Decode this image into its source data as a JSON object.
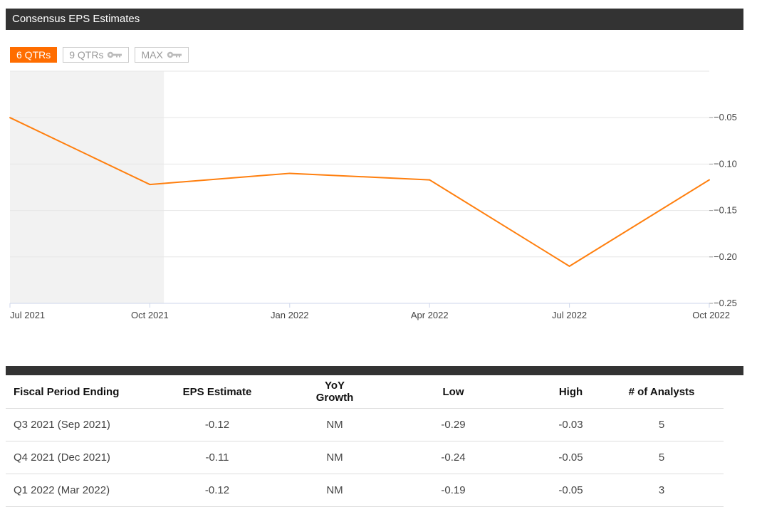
{
  "header": {
    "title": "Consensus EPS Estimates"
  },
  "range_buttons": [
    {
      "label": "6 QTRs",
      "active": true,
      "icon": ""
    },
    {
      "label": "9 QTRs",
      "active": false,
      "icon": "key-icon"
    },
    {
      "label": "MAX",
      "active": false,
      "icon": "key-icon"
    }
  ],
  "colors": {
    "accent": "#ff7f0e",
    "active_button": "#ff6d00",
    "header_bg": "#333333",
    "shade": "#f2f2f2"
  },
  "chart_data": {
    "type": "line",
    "title": "",
    "xlabel": "",
    "ylabel": "",
    "x": [
      "Jul 2021",
      "Oct 2021",
      "Jan 2022",
      "Apr 2022",
      "Jul 2022",
      "Oct 2022"
    ],
    "series": [
      {
        "values": [
          -0.05,
          -0.122,
          -0.11,
          -0.117,
          -0.21,
          -0.117
        ]
      }
    ],
    "y_ticks": [
      -0.05,
      -0.1,
      -0.15,
      -0.2,
      -0.25
    ],
    "y_tick_labels": [
      "−0.05",
      "−0.10",
      "−0.15",
      "−0.20",
      "−0.25"
    ],
    "ylim": [
      -0.25,
      0.0
    ],
    "y_axis_side": "right",
    "grid": true,
    "shaded_x_range": [
      "Jul 2021",
      "Oct 2021"
    ]
  },
  "table": {
    "headers": [
      "Fiscal Period Ending",
      "EPS Estimate",
      "YoY Growth",
      "Low",
      "High",
      "# of Analysts"
    ],
    "rows": [
      [
        "Q3 2021 (Sep 2021)",
        "-0.12",
        "NM",
        "-0.29",
        "-0.03",
        "5"
      ],
      [
        "Q4 2021 (Dec 2021)",
        "-0.11",
        "NM",
        "-0.24",
        "-0.05",
        "5"
      ],
      [
        "Q1 2022 (Mar 2022)",
        "-0.12",
        "NM",
        "-0.19",
        "-0.05",
        "3"
      ]
    ]
  }
}
